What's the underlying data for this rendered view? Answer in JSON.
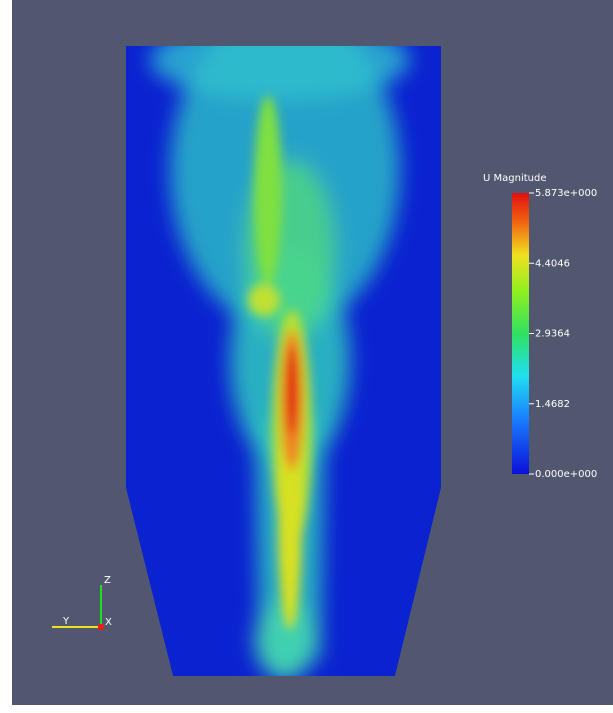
{
  "colorbar": {
    "title": "U Magnitude",
    "range": [
      0,
      5.873
    ],
    "ticks": [
      {
        "value": 0,
        "label": "0.000e+000"
      },
      1.4682,
      2.9364,
      4.4046,
      {
        "value": 5.873,
        "label": "5.873e+000"
      }
    ]
  },
  "axes": {
    "z": "Z",
    "y": "Y",
    "x": "X"
  }
}
